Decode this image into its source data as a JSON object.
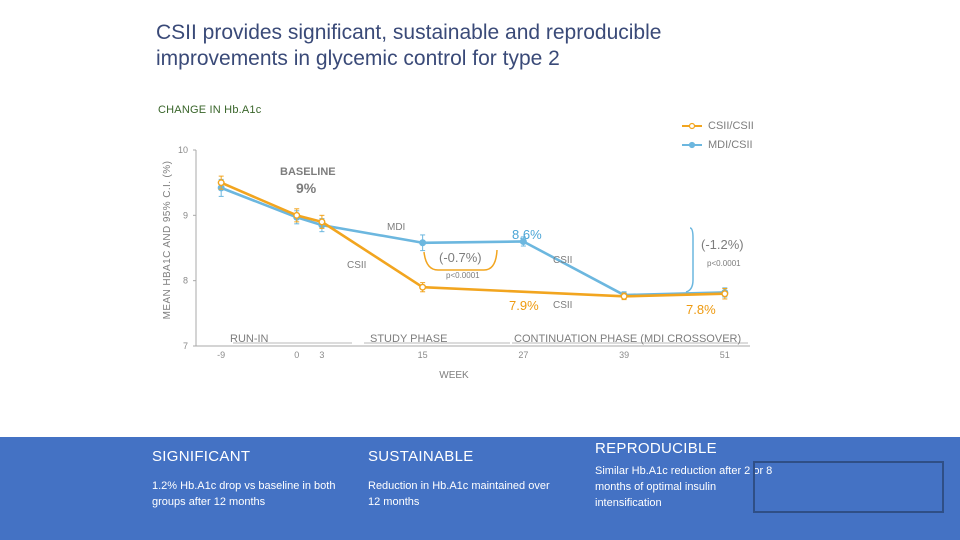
{
  "slide": {
    "title": "CSII provides significant, sustainable and reproducible improvements in glycemic control for type 2",
    "chart_caption": "CHANGE IN Hb.A1c"
  },
  "colors": {
    "csii": "#f2a51f",
    "mdi": "#6cb7df",
    "footer": "#4472c4",
    "axis": "#9a9a9a"
  },
  "chart_data": {
    "type": "line",
    "ylabel": "MEAN HBA1C AND 95% C.I. (%)",
    "xlabel": "WEEK",
    "ylim": [
      7,
      10
    ],
    "yticks": [
      7,
      8,
      9,
      10
    ],
    "xlim": [
      -12,
      54
    ],
    "xticks": [
      {
        "value": -9,
        "label": "-9"
      },
      {
        "value": 0,
        "label": "0"
      },
      {
        "value": 3,
        "label": "3"
      },
      {
        "value": 15,
        "label": "15"
      },
      {
        "value": 27,
        "label": "27"
      },
      {
        "value": 39,
        "label": "39"
      },
      {
        "value": 51,
        "label": "51"
      }
    ],
    "phases": [
      "RUN-IN",
      "STUDY PHASE",
      "CONTINUATION PHASE (MDI CROSSOVER)"
    ],
    "legend": [
      "CSII/CSII",
      "MDI/CSII"
    ],
    "series": [
      {
        "name": "CSII/CSII",
        "color": "#f2a51f",
        "x": [
          -9,
          0,
          3,
          15,
          39,
          51
        ],
        "y": [
          9.5,
          9.0,
          8.9,
          7.9,
          7.76,
          7.8
        ],
        "err": [
          0.1,
          0.1,
          0.1,
          0.07,
          0.05,
          0.08
        ]
      },
      {
        "name": "MDI/CSII",
        "color": "#6cb7df",
        "x": [
          -9,
          0,
          3,
          15,
          27,
          39,
          51
        ],
        "y": [
          9.42,
          8.97,
          8.85,
          8.58,
          8.6,
          7.78,
          7.82
        ],
        "err": [
          0.13,
          0.1,
          0.1,
          0.12,
          0.07,
          0.05,
          0.07
        ]
      }
    ],
    "annotations": {
      "baseline_label": "BASELINE",
      "baseline_value": "9%",
      "mdi_label": "MDI",
      "csii_label_1": "CSII",
      "csii_label_2": "CSII",
      "csii_label_3": "CSII",
      "mdi_end_value": "8.6%",
      "csii_end_value": "7.9%",
      "final_value": "7.8%",
      "delta_1": "(-0.7%)",
      "p_1": "p<0.0001",
      "delta_2": "(-1.2%)",
      "p_2": "p<0.0001"
    }
  },
  "footer": {
    "col1": {
      "heading": "SIGNIFICANT",
      "text": "1.2% Hb.A1c drop vs baseline in both groups after 12 months"
    },
    "col2": {
      "heading": "SUSTAINABLE",
      "text": "Reduction in Hb.A1c maintained over 12 months"
    },
    "col3": {
      "heading": "REPRODUCIBLE",
      "text": "Similar Hb.A1c reduction after 2 or 8 months of optimal insulin intensification"
    }
  }
}
